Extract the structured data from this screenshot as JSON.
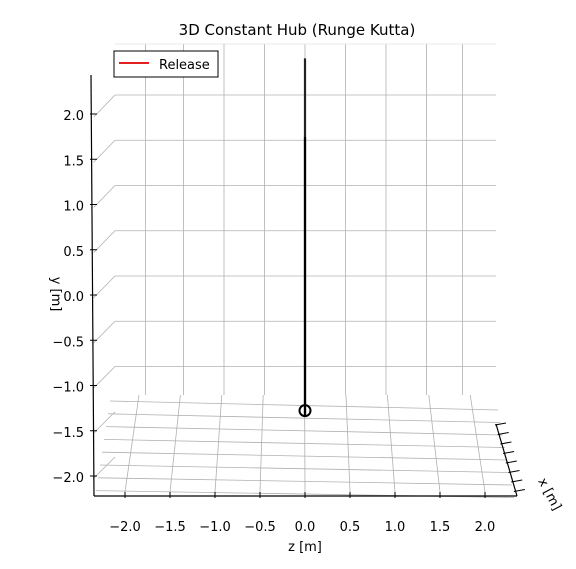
{
  "chart_data": {
    "type": "line",
    "projection": "3d",
    "title": "3D Constant Hub (Runge Kutta)",
    "xlabel": "z [m]",
    "ylabel": "y [m]",
    "zlabel": "x [m]",
    "x_ticks": [
      -2.0,
      -1.5,
      -1.0,
      -0.5,
      0.0,
      0.5,
      1.0,
      1.5,
      2.0
    ],
    "y_ticks": [
      -2.0,
      -1.5,
      -1.0,
      -0.5,
      0.0,
      0.5,
      1.0,
      1.5,
      2.0
    ],
    "x_tick_labels": [
      "−2.0",
      "−1.5",
      "−1.0",
      "−0.5",
      "0.0",
      "0.5",
      "1.0",
      "1.5",
      "2.0"
    ],
    "y_tick_labels": [
      "−2.0",
      "−1.5",
      "−1.0",
      "−0.5",
      "0.0",
      "0.5",
      "1.0",
      "1.5",
      "2.0"
    ],
    "xlim": [
      -2.4,
      2.2
    ],
    "ylim": [
      -2.1,
      2.4
    ],
    "grid": true,
    "legend": {
      "position": "top-left",
      "entries": [
        {
          "name": "Release",
          "color": "#e00000"
        }
      ]
    },
    "series": [
      {
        "name": "Release",
        "color": "#e00000",
        "x": [
          0.0,
          0.0
        ],
        "y": [
          -1.3,
          1.7
        ]
      },
      {
        "name": "",
        "color": "#000000",
        "x": [
          0.0,
          0.0
        ],
        "y": [
          -1.3,
          2.15
        ],
        "role": "hub line"
      }
    ],
    "markers": [
      {
        "shape": "open-circle",
        "x": 0.0,
        "y": -1.25,
        "color": "#000000"
      }
    ]
  }
}
